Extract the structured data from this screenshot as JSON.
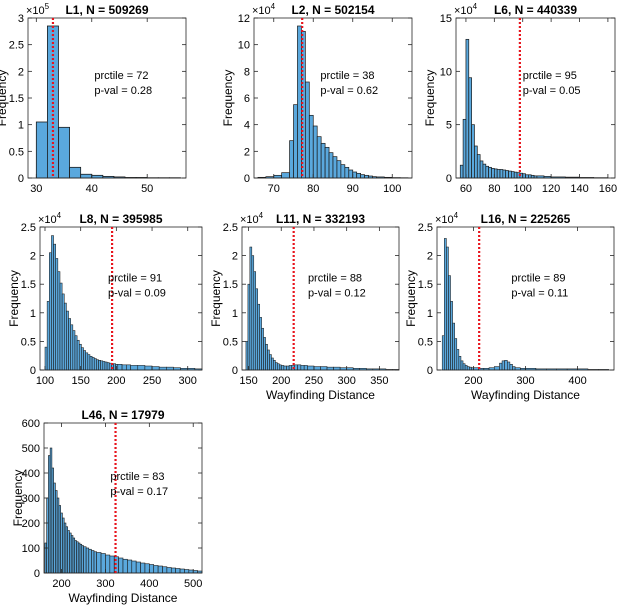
{
  "chart_data": [
    {
      "type": "bar",
      "title": "L1, N = 509269",
      "xlabel": "",
      "ylabel": "Frequency",
      "y_exponent": "×10",
      "y_exponent_power": "5",
      "xlim": [
        28.5,
        57
      ],
      "ylim": [
        0,
        3
      ],
      "xticks": [
        "30",
        "40",
        "50"
      ],
      "yticks": [
        "0",
        "0.5",
        "1",
        "1.5",
        "2",
        "2.5",
        "3"
      ],
      "bin_edges": [
        30,
        32,
        34,
        36,
        38,
        40,
        42,
        44,
        46,
        48,
        50,
        52,
        54,
        56
      ],
      "values": [
        1.05,
        2.85,
        0.95,
        0.2,
        0.07,
        0.05,
        0.03,
        0.02,
        0.01,
        0.01,
        0.005,
        0.005,
        0.005
      ],
      "observed": 33.0,
      "annotation": [
        "prctile = 72",
        "p-val = 0.28"
      ]
    },
    {
      "type": "bar",
      "title": "L2, N = 502154",
      "xlabel": "",
      "ylabel": "Frequency",
      "y_exponent": "×10",
      "y_exponent_power": "4",
      "xlim": [
        65,
        105
      ],
      "ylim": [
        0,
        12
      ],
      "xticks": [
        "70",
        "80",
        "90",
        "100"
      ],
      "yticks": [
        "0",
        "2",
        "4",
        "6",
        "8",
        "10",
        "12"
      ],
      "bin_edges": [
        66,
        68,
        70,
        72,
        74,
        75,
        76,
        77,
        78,
        79,
        80,
        81,
        82,
        83,
        84,
        85,
        86,
        87,
        88,
        89,
        90,
        91,
        92,
        93,
        94,
        95,
        96,
        98,
        100,
        102,
        104
      ],
      "values": [
        0.05,
        0.1,
        0.2,
        0.4,
        2.8,
        5.5,
        11.4,
        11.0,
        7.2,
        4.7,
        3.9,
        3.1,
        2.6,
        2.3,
        1.9,
        1.6,
        1.3,
        1.0,
        0.8,
        0.6,
        0.45,
        0.35,
        0.25,
        0.2,
        0.15,
        0.1,
        0.08,
        0.05,
        0.03,
        0.02
      ],
      "observed": 77.2,
      "annotation": [
        "prctile = 38",
        "p-val = 0.62"
      ]
    },
    {
      "type": "bar",
      "title": "L6, N = 440339",
      "xlabel": "",
      "ylabel": "Frequency",
      "y_exponent": "×10",
      "y_exponent_power": "4",
      "xlim": [
        53,
        165
      ],
      "ylim": [
        0,
        15
      ],
      "xticks": [
        "60",
        "80",
        "100",
        "120",
        "140",
        "160"
      ],
      "yticks": [
        "0",
        "5",
        "10",
        "15"
      ],
      "bin_edges": [
        56,
        58,
        60,
        62,
        64,
        66,
        68,
        70,
        72,
        74,
        76,
        78,
        80,
        82,
        84,
        86,
        88,
        90,
        92,
        94,
        96,
        98,
        100,
        102,
        104,
        106,
        108,
        110,
        115,
        120,
        130,
        140,
        150,
        160
      ],
      "values": [
        1.2,
        5.5,
        13.0,
        9.4,
        5.0,
        3.0,
        2.2,
        1.6,
        1.3,
        1.1,
        1.0,
        0.9,
        0.85,
        0.8,
        0.8,
        0.75,
        0.7,
        0.65,
        0.6,
        0.55,
        0.5,
        0.45,
        0.4,
        0.3,
        0.3,
        0.25,
        0.2,
        0.2,
        0.15,
        0.1,
        0.08,
        0.05,
        0.03
      ],
      "observed": 98.0,
      "annotation": [
        "prctile = 95",
        "p-val = 0.05"
      ]
    },
    {
      "type": "bar",
      "title": "L8, N = 395985",
      "xlabel": "",
      "ylabel": "Frequency",
      "y_exponent": "×10",
      "y_exponent_power": "4",
      "xlim": [
        93,
        320
      ],
      "ylim": [
        0,
        2.5
      ],
      "xticks": [
        "100",
        "150",
        "200",
        "250",
        "300"
      ],
      "yticks": [
        "0",
        "0.5",
        "1",
        "1.5",
        "2",
        "2.5"
      ],
      "bin_edges": [
        100,
        103,
        106,
        109,
        112,
        115,
        118,
        121,
        124,
        127,
        130,
        133,
        136,
        139,
        142,
        145,
        148,
        151,
        154,
        157,
        160,
        163,
        166,
        169,
        172,
        175,
        178,
        181,
        184,
        187,
        190,
        193,
        196,
        199,
        202,
        208,
        214,
        220,
        230,
        240,
        250,
        260,
        270,
        280,
        290,
        300,
        310,
        320
      ],
      "values": [
        0.4,
        1.2,
        2.05,
        2.35,
        2.2,
        1.95,
        1.72,
        1.52,
        1.33,
        1.17,
        1.03,
        0.9,
        0.79,
        0.69,
        0.6,
        0.52,
        0.45,
        0.39,
        0.34,
        0.3,
        0.27,
        0.24,
        0.22,
        0.2,
        0.18,
        0.17,
        0.16,
        0.15,
        0.14,
        0.13,
        0.12,
        0.11,
        0.11,
        0.1,
        0.1,
        0.09,
        0.09,
        0.08,
        0.08,
        0.07,
        0.06,
        0.05,
        0.05,
        0.04,
        0.03,
        0.03,
        0.02
      ],
      "observed": 194,
      "annotation": [
        "prctile = 91",
        "p-val = 0.09"
      ]
    },
    {
      "type": "bar",
      "title": "L11, N = 332193",
      "xlabel": "Wayfinding Distance",
      "ylabel": "Frequency",
      "y_exponent": "×10",
      "y_exponent_power": "4",
      "xlim": [
        140,
        380
      ],
      "ylim": [
        0,
        2.5
      ],
      "xticks": [
        "150",
        "200",
        "250",
        "300",
        "350"
      ],
      "yticks": [
        "0",
        "0.5",
        "1",
        "1.5",
        "2",
        "2.5"
      ],
      "bin_edges": [
        146,
        149,
        152,
        155,
        158,
        161,
        164,
        167,
        170,
        173,
        176,
        179,
        182,
        185,
        188,
        191,
        194,
        197,
        200,
        204,
        208,
        212,
        216,
        220,
        225,
        230,
        235,
        240,
        250,
        260,
        270,
        280,
        290,
        300,
        310,
        320,
        330,
        340,
        350,
        360,
        370,
        380
      ],
      "values": [
        0.5,
        1.5,
        2.15,
        2.0,
        1.72,
        1.42,
        1.15,
        0.92,
        0.73,
        0.57,
        0.45,
        0.35,
        0.27,
        0.21,
        0.17,
        0.13,
        0.11,
        0.09,
        0.08,
        0.07,
        0.07,
        0.08,
        0.08,
        0.09,
        0.09,
        0.08,
        0.08,
        0.07,
        0.06,
        0.06,
        0.05,
        0.05,
        0.04,
        0.04,
        0.03,
        0.03,
        0.02,
        0.02,
        0.02,
        0.01,
        0.01
      ],
      "observed": 219,
      "annotation": [
        "prctile = 88",
        "p-val = 0.12"
      ]
    },
    {
      "type": "bar",
      "title": "L16, N = 225265",
      "xlabel": "Wayfinding Distance",
      "ylabel": "Frequency",
      "y_exponent": "×10",
      "y_exponent_power": "4",
      "xlim": [
        130,
        470
      ],
      "ylim": [
        0,
        2.5
      ],
      "xticks": [
        "200",
        "300",
        "400"
      ],
      "yticks": [
        "0",
        "0.5",
        "1",
        "1.5",
        "2",
        "2.5"
      ],
      "bin_edges": [
        140,
        144,
        148,
        152,
        156,
        160,
        164,
        168,
        172,
        176,
        180,
        184,
        188,
        192,
        196,
        200,
        210,
        220,
        230,
        240,
        250,
        255,
        260,
        265,
        270,
        275,
        280,
        290,
        300,
        320,
        340,
        360,
        380,
        400,
        420,
        440,
        460
      ],
      "values": [
        0.6,
        2.3,
        2.15,
        1.65,
        1.2,
        0.82,
        0.55,
        0.36,
        0.24,
        0.16,
        0.11,
        0.08,
        0.06,
        0.05,
        0.04,
        0.04,
        0.03,
        0.03,
        0.04,
        0.06,
        0.12,
        0.16,
        0.17,
        0.14,
        0.1,
        0.06,
        0.04,
        0.03,
        0.03,
        0.02,
        0.02,
        0.02,
        0.02,
        0.02,
        0.01,
        0.01
      ],
      "observed": 211,
      "annotation": [
        "prctile = 89",
        "p-val = 0.11"
      ]
    },
    {
      "type": "bar",
      "title": "L46, N = 17979",
      "xlabel": "Wayfinding Distance",
      "ylabel": "Frequency",
      "y_exponent": "",
      "y_exponent_power": "",
      "xlim": [
        160,
        520
      ],
      "ylim": [
        0,
        600
      ],
      "xticks": [
        "200",
        "300",
        "400",
        "500"
      ],
      "yticks": [
        "0",
        "100",
        "200",
        "300",
        "400",
        "500",
        "600"
      ],
      "bin_edges": [
        162,
        166,
        170,
        174,
        178,
        182,
        186,
        190,
        194,
        198,
        202,
        206,
        210,
        214,
        218,
        222,
        226,
        230,
        234,
        238,
        242,
        246,
        250,
        256,
        262,
        268,
        274,
        280,
        290,
        300,
        310,
        320,
        330,
        340,
        350,
        360,
        370,
        380,
        390,
        400,
        410,
        420,
        430,
        440,
        450,
        460,
        470,
        480,
        490,
        500,
        510,
        520
      ],
      "values": [
        120,
        300,
        470,
        500,
        420,
        360,
        330,
        300,
        270,
        240,
        220,
        200,
        185,
        170,
        160,
        150,
        140,
        130,
        125,
        120,
        115,
        110,
        105,
        100,
        95,
        90,
        85,
        82,
        78,
        72,
        68,
        65,
        60,
        55,
        52,
        48,
        44,
        40,
        37,
        34,
        30,
        28,
        25,
        22,
        20,
        18,
        16,
        14,
        12,
        10,
        8
      ],
      "observed": 323,
      "annotation": [
        "prctile = 83",
        "p-val = 0.17"
      ]
    }
  ]
}
